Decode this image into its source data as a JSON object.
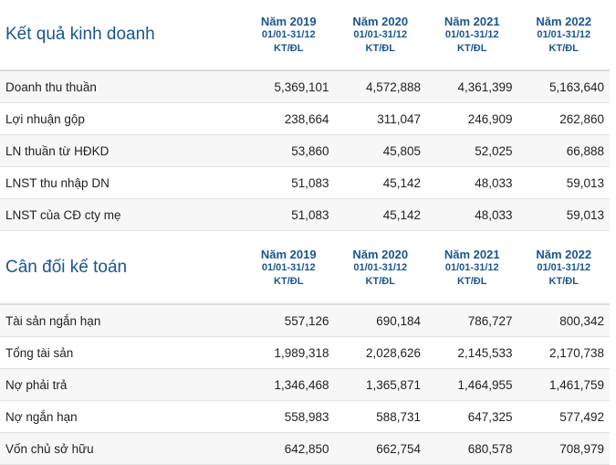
{
  "sections": [
    {
      "title": "Kết quả kinh doanh",
      "columns": [
        {
          "year": "Năm 2019",
          "period": "01/01-31/12",
          "unit": "KT/ĐL"
        },
        {
          "year": "Năm 2020",
          "period": "01/01-31/12",
          "unit": "KT/ĐL"
        },
        {
          "year": "Năm 2021",
          "period": "01/01-31/12",
          "unit": "KT/ĐL"
        },
        {
          "year": "Năm 2022",
          "period": "01/01-31/12",
          "unit": "KT/ĐL"
        }
      ],
      "rows": [
        {
          "label": "Doanh thu thuần",
          "values": [
            "5,369,101",
            "4,572,888",
            "4,361,399",
            "5,163,640"
          ]
        },
        {
          "label": "Lợi nhuận gộp",
          "values": [
            "238,664",
            "311,047",
            "246,909",
            "262,860"
          ]
        },
        {
          "label": "LN thuần từ HĐKD",
          "values": [
            "53,860",
            "45,805",
            "52,025",
            "66,888"
          ]
        },
        {
          "label": "LNST thu nhập DN",
          "values": [
            "51,083",
            "45,142",
            "48,033",
            "59,013"
          ]
        },
        {
          "label": "LNST của CĐ cty mẹ",
          "values": [
            "51,083",
            "45,142",
            "48,033",
            "59,013"
          ]
        }
      ]
    },
    {
      "title": "Cân đối kế toán",
      "columns": [
        {
          "year": "Năm 2019",
          "period": "01/01-31/12",
          "unit": "KT/ĐL"
        },
        {
          "year": "Năm 2020",
          "period": "01/01-31/12",
          "unit": "KT/ĐL"
        },
        {
          "year": "Năm 2021",
          "period": "01/01-31/12",
          "unit": "KT/ĐL"
        },
        {
          "year": "Năm 2022",
          "period": "01/01-31/12",
          "unit": "KT/ĐL"
        }
      ],
      "rows": [
        {
          "label": "Tài sản ngắn hạn",
          "values": [
            "557,126",
            "690,184",
            "786,727",
            "800,342"
          ]
        },
        {
          "label": "Tổng tài sản",
          "values": [
            "1,989,318",
            "2,028,626",
            "2,145,533",
            "2,170,738"
          ]
        },
        {
          "label": "Nợ phải trả",
          "values": [
            "1,346,468",
            "1,365,871",
            "1,464,955",
            "1,461,759"
          ]
        },
        {
          "label": "Nợ ngắn hạn",
          "values": [
            "558,983",
            "588,731",
            "647,325",
            "577,492"
          ]
        },
        {
          "label": "Vốn chủ sở hữu",
          "values": [
            "642,850",
            "662,754",
            "680,578",
            "708,979"
          ]
        }
      ]
    }
  ]
}
